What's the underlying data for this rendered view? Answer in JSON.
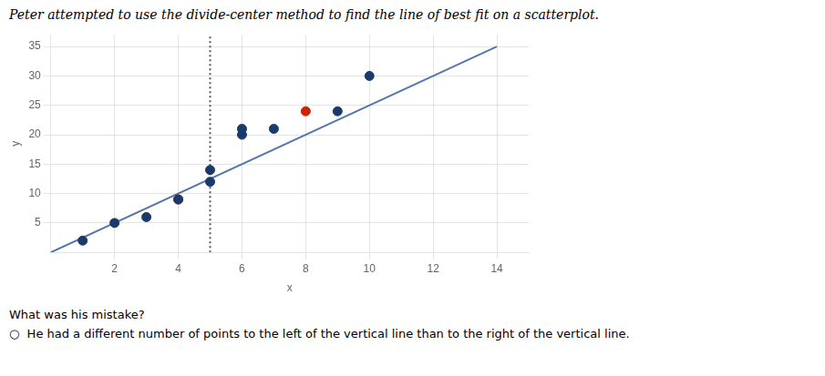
{
  "chart_data": {
    "type": "scatter",
    "title": "Peter attempted to use the divide-center method to find the line of best fit on a scatterplot.",
    "xlabel": "x",
    "ylabel": "y",
    "xlim": [
      0,
      15
    ],
    "ylim": [
      0,
      37
    ],
    "xticks": [
      2,
      4,
      6,
      8,
      10,
      12,
      14
    ],
    "yticks": [
      5,
      10,
      15,
      20,
      25,
      30,
      35
    ],
    "grid": true,
    "series": [
      {
        "color": "#1a3a6b",
        "x": [
          1,
          2,
          3,
          4,
          5,
          5,
          6,
          6,
          7,
          9,
          10
        ],
        "values": [
          2,
          5,
          6,
          9,
          12,
          14,
          20,
          21,
          21,
          24,
          30
        ]
      },
      {
        "color": "#cc2200",
        "x": [
          4,
          8
        ],
        "values": [
          9,
          24
        ]
      },
      {
        "type": "line",
        "color": "#5577aa",
        "x": [
          0,
          14
        ],
        "values": [
          0,
          35
        ]
      }
    ],
    "vlines": [
      {
        "x": 5,
        "color": "#555555",
        "line_style": "dotted"
      }
    ],
    "annotations": [
      "What was his mistake?",
      "○  He had a different number of points to the left of the vertical line than to the right of the vertical line."
    ]
  }
}
